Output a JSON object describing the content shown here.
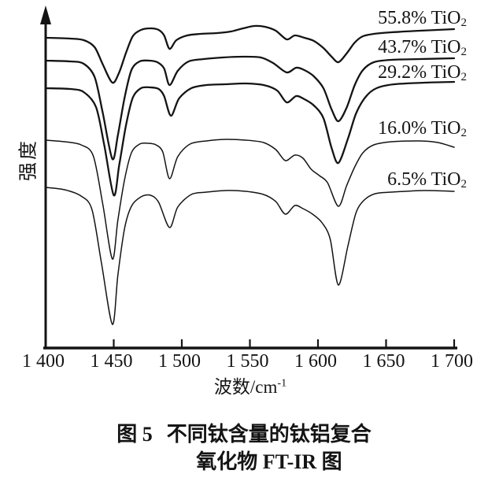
{
  "figure": {
    "ylabel": "强度",
    "xlabel_prefix": "波数/cm",
    "xlabel_sup": "-1",
    "caption": {
      "fig": "图 5",
      "line1": "不同钛含量的钛铝复合",
      "line2": "氧化物 FT-IR 图"
    }
  },
  "colors": {
    "ink": "#141414",
    "background": "#ffffff"
  },
  "chart_data": {
    "type": "line",
    "title": "图 5 不同钛含量的钛铝复合氧化物 FT-IR 图",
    "xlabel": "波数/cm⁻¹",
    "ylabel": "强度 (intensity, arbitrary units, unlabeled ticks)",
    "xlim": [
      1400,
      1700
    ],
    "ylim": [
      0,
      432
    ],
    "grid": false,
    "legend_position": "inline labels at right end of each curve",
    "xticks": [
      1400,
      1450,
      1500,
      1550,
      1600,
      1650,
      1700
    ],
    "xtick_labels": [
      "1 400",
      "1 450",
      "1 500",
      "1 550",
      "1 600",
      "1 650",
      "1 700"
    ],
    "peak_positions_cm-1": [
      1450,
      1491,
      1577,
      1615
    ],
    "series": [
      {
        "name": "55.8% TiO2",
        "label_text": "55.8% TiO",
        "label_sub": "2",
        "points": [
          [
            1400,
            394
          ],
          [
            1418,
            393
          ],
          [
            1428,
            391
          ],
          [
            1436,
            382
          ],
          [
            1442,
            360
          ],
          [
            1449,
            337
          ],
          [
            1454,
            350
          ],
          [
            1459,
            375
          ],
          [
            1464,
            396
          ],
          [
            1470,
            404
          ],
          [
            1477,
            406
          ],
          [
            1483,
            404
          ],
          [
            1487,
            397
          ],
          [
            1491,
            380
          ],
          [
            1496,
            391
          ],
          [
            1504,
            397
          ],
          [
            1514,
            399
          ],
          [
            1526,
            400
          ],
          [
            1536,
            402
          ],
          [
            1545,
            406
          ],
          [
            1553,
            409
          ],
          [
            1561,
            408
          ],
          [
            1569,
            403
          ],
          [
            1577,
            392
          ],
          [
            1583,
            397
          ],
          [
            1590,
            394
          ],
          [
            1597,
            390
          ],
          [
            1604,
            381
          ],
          [
            1610,
            370
          ],
          [
            1615,
            363
          ],
          [
            1621,
            374
          ],
          [
            1627,
            388
          ],
          [
            1633,
            396
          ],
          [
            1641,
            399
          ],
          [
            1654,
            401
          ],
          [
            1675,
            403
          ],
          [
            1700,
            405
          ]
        ]
      },
      {
        "name": "43.7% TiO2",
        "label_text": "43.7% TiO",
        "label_sub": "2",
        "points": [
          [
            1400,
            365
          ],
          [
            1418,
            364
          ],
          [
            1428,
            361
          ],
          [
            1436,
            344
          ],
          [
            1442,
            298
          ],
          [
            1449,
            240
          ],
          [
            1453,
            270
          ],
          [
            1458,
            318
          ],
          [
            1463,
            353
          ],
          [
            1469,
            364
          ],
          [
            1476,
            365
          ],
          [
            1482,
            363
          ],
          [
            1487,
            355
          ],
          [
            1491,
            334
          ],
          [
            1497,
            352
          ],
          [
            1505,
            364
          ],
          [
            1516,
            367
          ],
          [
            1530,
            369
          ],
          [
            1545,
            370
          ],
          [
            1558,
            369
          ],
          [
            1567,
            362
          ],
          [
            1577,
            350
          ],
          [
            1584,
            356
          ],
          [
            1590,
            353
          ],
          [
            1597,
            345
          ],
          [
            1604,
            330
          ],
          [
            1610,
            303
          ],
          [
            1615,
            288
          ],
          [
            1621,
            305
          ],
          [
            1627,
            334
          ],
          [
            1633,
            353
          ],
          [
            1641,
            363
          ],
          [
            1654,
            366
          ],
          [
            1675,
            367
          ],
          [
            1700,
            368
          ]
        ]
      },
      {
        "name": "29.2% TiO2",
        "label_text": "29.2% TiO",
        "label_sub": "2",
        "points": [
          [
            1400,
            330
          ],
          [
            1418,
            329
          ],
          [
            1428,
            325
          ],
          [
            1437,
            306
          ],
          [
            1443,
            258
          ],
          [
            1450,
            194
          ],
          [
            1454,
            232
          ],
          [
            1459,
            283
          ],
          [
            1464,
            318
          ],
          [
            1470,
            330
          ],
          [
            1477,
            331
          ],
          [
            1483,
            329
          ],
          [
            1487,
            320
          ],
          [
            1492,
            295
          ],
          [
            1498,
            317
          ],
          [
            1507,
            330
          ],
          [
            1518,
            334
          ],
          [
            1532,
            335
          ],
          [
            1547,
            336
          ],
          [
            1560,
            334
          ],
          [
            1570,
            327
          ],
          [
            1577,
            312
          ],
          [
            1584,
            320
          ],
          [
            1590,
            316
          ],
          [
            1597,
            308
          ],
          [
            1604,
            292
          ],
          [
            1610,
            254
          ],
          [
            1615,
            235
          ],
          [
            1622,
            266
          ],
          [
            1628,
            298
          ],
          [
            1635,
            319
          ],
          [
            1643,
            330
          ],
          [
            1656,
            335
          ],
          [
            1678,
            337
          ],
          [
            1700,
            338
          ]
        ]
      },
      {
        "name": "16.0% TiO2",
        "label_text": "16.0% TiO",
        "label_sub": "2",
        "points": [
          [
            1400,
            264
          ],
          [
            1414,
            262
          ],
          [
            1426,
            258
          ],
          [
            1435,
            244
          ],
          [
            1442,
            182
          ],
          [
            1449,
            113
          ],
          [
            1453,
            162
          ],
          [
            1458,
            214
          ],
          [
            1463,
            248
          ],
          [
            1469,
            259
          ],
          [
            1475,
            260
          ],
          [
            1481,
            258
          ],
          [
            1486,
            249
          ],
          [
            1491,
            215
          ],
          [
            1497,
            243
          ],
          [
            1506,
            259
          ],
          [
            1518,
            263
          ],
          [
            1532,
            265
          ],
          [
            1547,
            264
          ],
          [
            1560,
            261
          ],
          [
            1569,
            252
          ],
          [
            1576,
            238
          ],
          [
            1583,
            245
          ],
          [
            1589,
            241
          ],
          [
            1595,
            227
          ],
          [
            1601,
            219
          ],
          [
            1607,
            210
          ],
          [
            1615,
            180
          ],
          [
            1621,
            206
          ],
          [
            1627,
            230
          ],
          [
            1633,
            248
          ],
          [
            1641,
            258
          ],
          [
            1654,
            262
          ],
          [
            1675,
            263
          ],
          [
            1688,
            261
          ],
          [
            1700,
            255
          ]
        ]
      },
      {
        "name": "6.5% TiO2",
        "label_text": "6.5% TiO",
        "label_sub": "2",
        "points": [
          [
            1400,
            204
          ],
          [
            1414,
            201
          ],
          [
            1426,
            193
          ],
          [
            1434,
            176
          ],
          [
            1441,
            108
          ],
          [
            1449,
            30
          ],
          [
            1453,
            92
          ],
          [
            1458,
            152
          ],
          [
            1463,
            180
          ],
          [
            1470,
            192
          ],
          [
            1477,
            194
          ],
          [
            1483,
            185
          ],
          [
            1491,
            153
          ],
          [
            1497,
            179
          ],
          [
            1507,
            195
          ],
          [
            1518,
            198
          ],
          [
            1532,
            200
          ],
          [
            1547,
            199
          ],
          [
            1560,
            195
          ],
          [
            1569,
            186
          ],
          [
            1576,
            170
          ],
          [
            1583,
            181
          ],
          [
            1589,
            177
          ],
          [
            1596,
            170
          ],
          [
            1603,
            159
          ],
          [
            1609,
            138
          ],
          [
            1615,
            80
          ],
          [
            1622,
            130
          ],
          [
            1628,
            172
          ],
          [
            1634,
            188
          ],
          [
            1642,
            196
          ],
          [
            1654,
            198
          ],
          [
            1678,
            200
          ],
          [
            1700,
            199
          ]
        ]
      }
    ]
  }
}
